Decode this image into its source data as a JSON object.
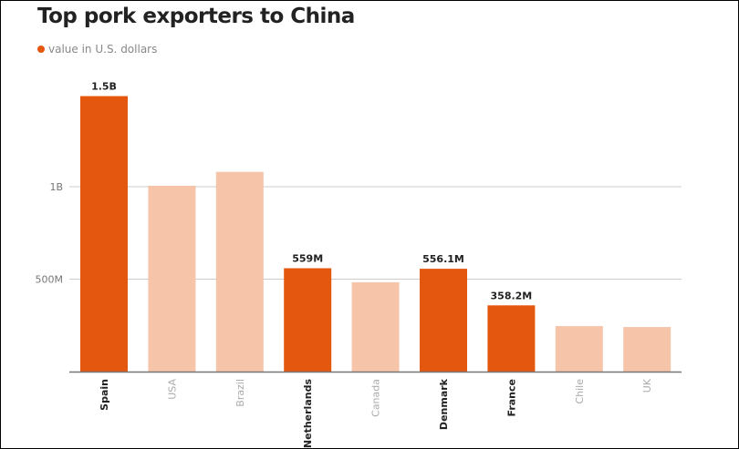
{
  "chart_data": {
    "type": "bar",
    "title": "Top pork exporters to China",
    "legend": [
      {
        "label": "value in U.S. dollars",
        "color": "#e4570f"
      }
    ],
    "legend_placement": "top-left",
    "categories": [
      "Spain",
      "USA",
      "Brazil",
      "Netherlands",
      "Canada",
      "Denmark",
      "France",
      "Chile",
      "UK"
    ],
    "values": [
      1.49,
      1.005,
      1.08,
      0.559,
      0.483,
      0.5561,
      0.3582,
      0.246,
      0.241
    ],
    "value_unit": "billion USD",
    "highlighted": [
      true,
      false,
      false,
      true,
      false,
      true,
      true,
      false,
      false
    ],
    "data_labels": [
      "1.5B",
      "",
      "",
      "559M",
      "",
      "556.1M",
      "358.2M",
      "",
      ""
    ],
    "yticks": [
      {
        "value": 0.5,
        "label": "500M"
      },
      {
        "value": 1,
        "label": "1B"
      }
    ],
    "ylim": [
      0,
      1.6
    ],
    "grid": true,
    "colors": {
      "highlight": "#e4570f",
      "muted": "#f5c4a9",
      "label_bold": "#222222",
      "label_muted": "#aaaaaa"
    },
    "xlabel": "",
    "ylabel": ""
  }
}
